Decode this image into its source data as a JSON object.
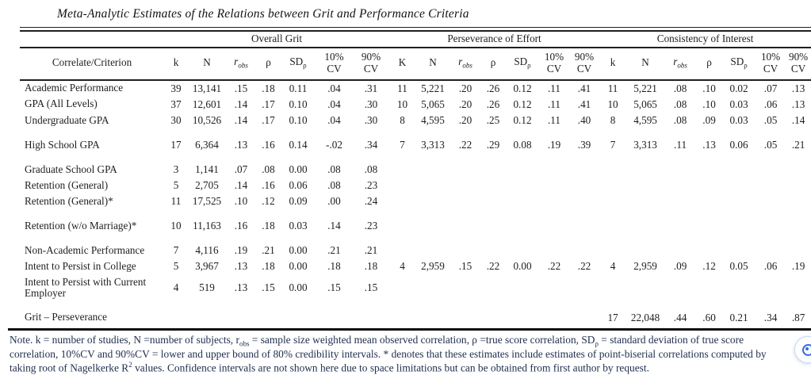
{
  "title": "Meta-Analytic Estimates of the Relations between Grit and Performance Criteria",
  "table": {
    "groups": [
      "Overall Grit",
      "Perseverance of Effort",
      "Consistency of Interest"
    ],
    "criterion_header": "Correlate/Criterion",
    "subheaders": {
      "k1": "k",
      "k2": "K",
      "k3": "k",
      "n": "N",
      "r_base": "r",
      "r_sub": "obs",
      "rho": "ρ",
      "sd_base": "SD",
      "sd_sub": "ρ",
      "cv10_top": "10%",
      "cv90_top": "90%",
      "cv_bottom": "CV"
    },
    "rows": [
      {
        "label": "Academic Performance",
        "gap_before": false,
        "cells": [
          "39",
          "13,141",
          ".15",
          ".18",
          "0.11",
          ".04",
          ".31",
          "11",
          "5,221",
          ".20",
          ".26",
          "0.12",
          ".11",
          ".41",
          "11",
          "5,221",
          ".08",
          ".10",
          "0.02",
          ".07",
          ".13"
        ]
      },
      {
        "label": "GPA (All Levels)",
        "gap_before": false,
        "cells": [
          "37",
          "12,601",
          ".14",
          ".17",
          "0.10",
          ".04",
          ".30",
          "10",
          "5,065",
          ".20",
          ".26",
          "0.12",
          ".11",
          ".41",
          "10",
          "5,065",
          ".08",
          ".10",
          "0.03",
          ".06",
          ".13"
        ]
      },
      {
        "label": "Undergraduate GPA",
        "gap_before": false,
        "cells": [
          "30",
          "10,526",
          ".14",
          ".17",
          "0.10",
          ".04",
          ".30",
          "8",
          "4,595",
          ".20",
          ".25",
          "0.12",
          ".11",
          ".40",
          "8",
          "4,595",
          ".08",
          ".09",
          "0.03",
          ".05",
          ".14"
        ]
      },
      {
        "label": "High School GPA",
        "gap_before": true,
        "cells": [
          "17",
          "6,364",
          ".13",
          ".16",
          "0.14",
          "-.02",
          ".34",
          "7",
          "3,313",
          ".22",
          ".29",
          "0.08",
          ".19",
          ".39",
          "7",
          "3,313",
          ".11",
          ".13",
          "0.06",
          ".05",
          ".21"
        ]
      },
      {
        "label": "Graduate School GPA",
        "gap_before": true,
        "cells": [
          "3",
          "1,141",
          ".07",
          ".08",
          "0.00",
          ".08",
          ".08",
          "",
          "",
          "",
          "",
          "",
          "",
          "",
          "",
          "",
          "",
          "",
          "",
          "",
          ""
        ]
      },
      {
        "label": "Retention (General)",
        "gap_before": false,
        "cells": [
          "5",
          "2,705",
          ".14",
          ".16",
          "0.06",
          ".08",
          ".23",
          "",
          "",
          "",
          "",
          "",
          "",
          "",
          "",
          "",
          "",
          "",
          "",
          "",
          ""
        ]
      },
      {
        "label": "Retention (General)*",
        "gap_before": false,
        "cells": [
          "11",
          "17,525",
          ".10",
          ".12",
          "0.09",
          ".00",
          ".24",
          "",
          "",
          "",
          "",
          "",
          "",
          "",
          "",
          "",
          "",
          "",
          "",
          "",
          ""
        ]
      },
      {
        "label": "Retention (w/o Marriage)*",
        "gap_before": true,
        "cells": [
          "10",
          "11,163",
          ".16",
          ".18",
          "0.03",
          ".14",
          ".23",
          "",
          "",
          "",
          "",
          "",
          "",
          "",
          "",
          "",
          "",
          "",
          "",
          "",
          ""
        ]
      },
      {
        "label": "Non-Academic Performance",
        "gap_before": true,
        "cells": [
          "7",
          "4,116",
          ".19",
          ".21",
          "0.00",
          ".21",
          ".21",
          "",
          "",
          "",
          "",
          "",
          "",
          "",
          "",
          "",
          "",
          "",
          "",
          "",
          ""
        ]
      },
      {
        "label": "Intent to Persist in College",
        "gap_before": false,
        "cells": [
          "5",
          "3,967",
          ".13",
          ".18",
          "0.00",
          ".18",
          ".18",
          "4",
          "2,959",
          ".15",
          ".22",
          "0.00",
          ".22",
          ".22",
          "4",
          "2,959",
          ".09",
          ".12",
          "0.05",
          ".06",
          ".19"
        ]
      },
      {
        "label": "Intent to Persist with Current Employer",
        "gap_before": false,
        "cells": [
          "4",
          "519",
          ".13",
          ".15",
          "0.00",
          ".15",
          ".15",
          "",
          "",
          "",
          "",
          "",
          "",
          "",
          "",
          "",
          "",
          "",
          "",
          "",
          ""
        ]
      },
      {
        "label": "Grit – Perseverance",
        "gap_before": true,
        "cells": [
          "",
          "",
          "",
          "",
          "",
          "",
          "",
          "",
          "",
          "",
          "",
          "",
          "",
          "",
          "17",
          "22,048",
          ".44",
          ".60",
          "0.21",
          ".34",
          ".87"
        ]
      }
    ]
  },
  "note": {
    "segments": [
      {
        "text": "Note. k = number of studies, N =number of subjects, r"
      },
      {
        "text": "obs",
        "script": "sub"
      },
      {
        "text": " = sample size weighted mean observed correlation, ρ =true score correlation, SD"
      },
      {
        "text": "ρ",
        "script": "sub"
      },
      {
        "text": " = standard deviation of true score correlation, 10%CV and 90%CV = lower and upper bound of 80% credibility intervals. * denotes that these estimates include estimates of point-biserial correlations computed by taking root of Nagelkerke R"
      },
      {
        "text": "2",
        "script": "sup"
      },
      {
        "text": " values. Confidence intervals are not shown here due to space limitations but can be obtained from first author by request."
      }
    ]
  },
  "fab": {
    "name": "assistant-badge"
  }
}
